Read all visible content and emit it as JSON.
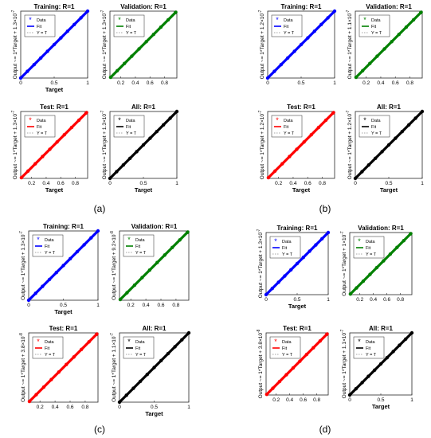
{
  "figure": {
    "panel_labels": [
      "(a)",
      "(b)",
      "(c)",
      "(d)"
    ]
  },
  "chart_data": [
    {
      "panel": "(a)",
      "plots": [
        {
          "title": "Training: R=1",
          "type": "scatter",
          "color": "#0000ff",
          "xlabel": "Target",
          "ylabel": "Output ~= 1*Target + 1.3×10",
          "yexp": "-7",
          "xlim": [
            0,
            1
          ],
          "ylim": [
            0,
            1
          ],
          "xticks": [
            "0",
            "0.5",
            "1"
          ],
          "xtick_values": [
            0,
            0.5,
            1
          ],
          "legend": [
            "Data",
            "Fit",
            "Y = T"
          ],
          "x": [
            0,
            0.1,
            0.2,
            0.3,
            0.4,
            0.5,
            0.6,
            0.7,
            0.8,
            0.9,
            1
          ],
          "y": [
            0,
            0.1,
            0.2,
            0.3,
            0.4,
            0.5,
            0.6,
            0.7,
            0.8,
            0.9,
            1
          ]
        },
        {
          "title": "Validation: R=1",
          "type": "scatter",
          "color": "#008000",
          "xlabel": "",
          "ylabel": "Output ~= 1*Target + 1.3×10",
          "yexp": "-7",
          "xlim": [
            0.05,
            0.97
          ],
          "ylim": [
            0.05,
            0.97
          ],
          "xticks": [
            "0.2",
            "0.4",
            "0.6",
            "0.8"
          ],
          "xtick_values": [
            0.2,
            0.4,
            0.6,
            0.8
          ],
          "legend": [
            "Data",
            "Fit",
            "Y = T"
          ],
          "x": [
            0.06,
            0.15,
            0.25,
            0.35,
            0.45,
            0.55,
            0.65,
            0.75,
            0.85,
            0.95
          ],
          "y": [
            0.06,
            0.15,
            0.25,
            0.35,
            0.45,
            0.55,
            0.65,
            0.75,
            0.85,
            0.95
          ]
        },
        {
          "title": "Test: R=1",
          "type": "scatter",
          "color": "#ff0000",
          "xlabel": "Target",
          "ylabel": "Output ~= 1*Target + 1.3×10",
          "yexp": "-7",
          "xlim": [
            0.05,
            0.97
          ],
          "ylim": [
            0.05,
            0.97
          ],
          "xticks": [
            "0.2",
            "0.4",
            "0.6",
            "0.8"
          ],
          "xtick_values": [
            0.2,
            0.4,
            0.6,
            0.8
          ],
          "legend": [
            "Data",
            "Fit",
            "Y = T"
          ],
          "x": [
            0.06,
            0.15,
            0.25,
            0.35,
            0.45,
            0.55,
            0.65,
            0.75,
            0.85,
            0.95
          ],
          "y": [
            0.06,
            0.15,
            0.25,
            0.35,
            0.45,
            0.55,
            0.65,
            0.75,
            0.85,
            0.95
          ]
        },
        {
          "title": "All: R=1",
          "type": "scatter",
          "color": "#000000",
          "xlabel": "Target",
          "ylabel": "Output ~= 1*Target + 1.3×10",
          "yexp": "-7",
          "xlim": [
            0,
            1
          ],
          "ylim": [
            0,
            1
          ],
          "xticks": [
            "0",
            "0.5",
            "1"
          ],
          "xtick_values": [
            0,
            0.5,
            1
          ],
          "legend": [
            "Data",
            "Fit",
            "Y = T"
          ],
          "x": [
            0,
            0.1,
            0.2,
            0.3,
            0.4,
            0.5,
            0.6,
            0.7,
            0.8,
            0.9,
            1
          ],
          "y": [
            0,
            0.1,
            0.2,
            0.3,
            0.4,
            0.5,
            0.6,
            0.7,
            0.8,
            0.9,
            1
          ]
        }
      ]
    },
    {
      "panel": "(b)",
      "plots": [
        {
          "title": "Training: R=1",
          "type": "scatter",
          "color": "#0000ff",
          "xlabel": "",
          "ylabel": "Output ~= 1*Target + 1.2×10",
          "yexp": "-7",
          "xlim": [
            0,
            1
          ],
          "ylim": [
            0,
            1
          ],
          "xticks": [
            "0",
            "0.5",
            "1"
          ],
          "xtick_values": [
            0,
            0.5,
            1
          ],
          "legend": [
            "Data",
            "Fit",
            "Y = T"
          ],
          "x": [
            0,
            0.1,
            0.2,
            0.3,
            0.4,
            0.5,
            0.6,
            0.7,
            0.8,
            0.9,
            1
          ],
          "y": [
            0,
            0.1,
            0.2,
            0.3,
            0.4,
            0.5,
            0.6,
            0.7,
            0.8,
            0.9,
            1
          ]
        },
        {
          "title": "Validation: R=1",
          "type": "scatter",
          "color": "#008000",
          "xlabel": "",
          "ylabel": "Output ~= 1*Target + 1.1×10",
          "yexp": "-7",
          "xlim": [
            0.05,
            0.97
          ],
          "ylim": [
            0.05,
            0.97
          ],
          "xticks": [
            "0.2",
            "0.4",
            "0.6",
            "0.8"
          ],
          "xtick_values": [
            0.2,
            0.4,
            0.6,
            0.8
          ],
          "legend": [
            "Data",
            "Fit",
            "Y = T"
          ],
          "x": [
            0.06,
            0.15,
            0.25,
            0.35,
            0.45,
            0.55,
            0.65,
            0.75,
            0.85,
            0.95
          ],
          "y": [
            0.06,
            0.15,
            0.25,
            0.35,
            0.45,
            0.55,
            0.65,
            0.75,
            0.85,
            0.95
          ]
        },
        {
          "title": "Test: R=1",
          "type": "scatter",
          "color": "#ff0000",
          "xlabel": "Target",
          "ylabel": "Output ~= 1*Target + 1.2×10",
          "yexp": "-7",
          "xlim": [
            0.05,
            0.97
          ],
          "ylim": [
            0.05,
            0.97
          ],
          "xticks": [
            "0.2",
            "0.4",
            "0.6",
            "0.8"
          ],
          "xtick_values": [
            0.2,
            0.4,
            0.6,
            0.8
          ],
          "legend": [
            "Data",
            "Fit",
            "Y = T"
          ],
          "x": [
            0.06,
            0.15,
            0.25,
            0.35,
            0.45,
            0.55,
            0.65,
            0.75,
            0.85,
            0.95
          ],
          "y": [
            0.06,
            0.15,
            0.25,
            0.35,
            0.45,
            0.55,
            0.65,
            0.75,
            0.85,
            0.95
          ]
        },
        {
          "title": "All: R=1",
          "type": "scatter",
          "color": "#000000",
          "xlabel": "Target",
          "ylabel": "Output ~= 1*Target + 1.2×10",
          "yexp": "-7",
          "xlim": [
            0,
            1
          ],
          "ylim": [
            0,
            1
          ],
          "xticks": [
            "0",
            "0.5",
            "1"
          ],
          "xtick_values": [
            0,
            0.5,
            1
          ],
          "legend": [
            "Data",
            "Fit",
            "Y = T"
          ],
          "x": [
            0,
            0.1,
            0.2,
            0.3,
            0.4,
            0.5,
            0.6,
            0.7,
            0.8,
            0.9,
            1
          ],
          "y": [
            0,
            0.1,
            0.2,
            0.3,
            0.4,
            0.5,
            0.6,
            0.7,
            0.8,
            0.9,
            1
          ]
        }
      ]
    },
    {
      "panel": "(c)",
      "plots": [
        {
          "title": "Training: R=1",
          "type": "scatter",
          "color": "#0000ff",
          "xlabel": "Target",
          "ylabel": "Output ~= 1*Target + 1.3×10",
          "yexp": "-7",
          "xlim": [
            0,
            1
          ],
          "ylim": [
            0,
            1
          ],
          "xticks": [
            "0",
            "0.5",
            "1"
          ],
          "xtick_values": [
            0,
            0.5,
            1
          ],
          "legend": [
            "Data",
            "Fit",
            "Y = T"
          ],
          "x": [
            0,
            0.1,
            0.2,
            0.3,
            0.4,
            0.5,
            0.6,
            0.7,
            0.8,
            0.9,
            1
          ],
          "y": [
            0,
            0.1,
            0.2,
            0.3,
            0.4,
            0.5,
            0.6,
            0.7,
            0.8,
            0.9,
            1
          ]
        },
        {
          "title": "Validation: R=1",
          "type": "scatter",
          "color": "#008000",
          "xlabel": "",
          "ylabel": "Output ~= 1*Target + 9.2×10",
          "yexp": "-8",
          "xlim": [
            0.05,
            0.97
          ],
          "ylim": [
            0.05,
            0.97
          ],
          "xticks": [
            "0.2",
            "0.4",
            "0.6",
            "0.8"
          ],
          "xtick_values": [
            0.2,
            0.4,
            0.6,
            0.8
          ],
          "legend": [
            "Data",
            "Fit",
            "Y = T"
          ],
          "x": [
            0.06,
            0.15,
            0.25,
            0.35,
            0.45,
            0.55,
            0.65,
            0.75,
            0.85,
            0.95
          ],
          "y": [
            0.06,
            0.15,
            0.25,
            0.35,
            0.45,
            0.55,
            0.65,
            0.75,
            0.85,
            0.95
          ]
        },
        {
          "title": "Test: R=1",
          "type": "scatter",
          "color": "#ff0000",
          "xlabel": "",
          "ylabel": "Output ~= 1*Target + 3.8×10",
          "yexp": "-8",
          "xlim": [
            0.05,
            0.97
          ],
          "ylim": [
            0.05,
            0.97
          ],
          "xticks": [
            "0.2",
            "0.4",
            "0.6",
            "0.8"
          ],
          "xtick_values": [
            0.2,
            0.4,
            0.6,
            0.8
          ],
          "legend": [
            "Data",
            "Fit",
            "Y = T"
          ],
          "x": [
            0.06,
            0.15,
            0.25,
            0.35,
            0.45,
            0.55,
            0.65,
            0.75,
            0.85,
            0.95
          ],
          "y": [
            0.06,
            0.15,
            0.25,
            0.35,
            0.45,
            0.55,
            0.65,
            0.75,
            0.85,
            0.95
          ]
        },
        {
          "title": "All: R=1",
          "type": "scatter",
          "color": "#000000",
          "xlabel": "Target",
          "ylabel": "Output ~= 1*Target + 1.1×10",
          "yexp": "-7",
          "xlim": [
            0,
            1
          ],
          "ylim": [
            0,
            1
          ],
          "xticks": [
            "0",
            "0.5",
            "1"
          ],
          "xtick_values": [
            0,
            0.5,
            1
          ],
          "legend": [
            "Data",
            "Fit",
            "Y = T"
          ],
          "x": [
            0,
            0.1,
            0.2,
            0.3,
            0.4,
            0.5,
            0.6,
            0.7,
            0.8,
            0.9,
            1
          ],
          "y": [
            0,
            0.1,
            0.2,
            0.3,
            0.4,
            0.5,
            0.6,
            0.7,
            0.8,
            0.9,
            1
          ]
        }
      ]
    },
    {
      "panel": "(d)",
      "plots": [
        {
          "title": "Training: R=1",
          "type": "scatter",
          "color": "#0000ff",
          "xlabel": "Target",
          "ylabel": "Output ~= 1*Target + 1.3×10",
          "yexp": "-7",
          "xlim": [
            0,
            1
          ],
          "ylim": [
            0,
            1
          ],
          "xticks": [
            "0",
            "0.5",
            "1"
          ],
          "xtick_values": [
            0,
            0.5,
            1
          ],
          "legend": [
            "Data",
            "Fit",
            "Y = T"
          ],
          "x": [
            0,
            0.1,
            0.2,
            0.3,
            0.4,
            0.5,
            0.6,
            0.7,
            0.8,
            0.9,
            1
          ],
          "y": [
            0,
            0.1,
            0.2,
            0.3,
            0.4,
            0.5,
            0.6,
            0.7,
            0.8,
            0.9,
            1
          ]
        },
        {
          "title": "Validation: R=1",
          "type": "scatter",
          "color": "#008000",
          "xlabel": "",
          "ylabel": "Output ~= 1*Target + 1×10",
          "yexp": "-7",
          "xlim": [
            0.05,
            0.97
          ],
          "ylim": [
            0.05,
            0.97
          ],
          "xticks": [
            "0.2",
            "0.4",
            "0.6",
            "0.8"
          ],
          "xtick_values": [
            0.2,
            0.4,
            0.6,
            0.8
          ],
          "legend": [
            "Data",
            "Fit",
            "Y = T"
          ],
          "x": [
            0.06,
            0.15,
            0.25,
            0.35,
            0.45,
            0.55,
            0.65,
            0.75,
            0.85,
            0.95
          ],
          "y": [
            0.06,
            0.15,
            0.25,
            0.35,
            0.45,
            0.55,
            0.65,
            0.75,
            0.85,
            0.95
          ]
        },
        {
          "title": "Test: R=1",
          "type": "scatter",
          "color": "#ff0000",
          "xlabel": "",
          "ylabel": "Output ~= 1*Target + 3.8×10",
          "yexp": "-8",
          "xlim": [
            0.05,
            0.97
          ],
          "ylim": [
            0.05,
            0.97
          ],
          "xticks": [
            "0.2",
            "0.4",
            "0.6",
            "0.8"
          ],
          "xtick_values": [
            0.2,
            0.4,
            0.6,
            0.8
          ],
          "legend": [
            "Data",
            "Fit",
            "Y = T"
          ],
          "x": [
            0.06,
            0.15,
            0.25,
            0.35,
            0.45,
            0.55,
            0.65,
            0.75,
            0.85,
            0.95
          ],
          "y": [
            0.06,
            0.15,
            0.25,
            0.35,
            0.45,
            0.55,
            0.65,
            0.75,
            0.85,
            0.95
          ]
        },
        {
          "title": "All: R=1",
          "type": "scatter",
          "color": "#000000",
          "xlabel": "Target",
          "ylabel": "Output ~= 1*Target + 1.1×10",
          "yexp": "-7",
          "xlim": [
            0,
            1
          ],
          "ylim": [
            0,
            1
          ],
          "xticks": [
            "0",
            "0.5",
            "1"
          ],
          "xtick_values": [
            0,
            0.5,
            1
          ],
          "legend": [
            "Data",
            "Fit",
            "Y = T"
          ],
          "x": [
            0,
            0.1,
            0.2,
            0.3,
            0.4,
            0.5,
            0.6,
            0.7,
            0.8,
            0.9,
            1
          ],
          "y": [
            0,
            0.1,
            0.2,
            0.3,
            0.4,
            0.5,
            0.6,
            0.7,
            0.8,
            0.9,
            1
          ]
        }
      ]
    }
  ]
}
